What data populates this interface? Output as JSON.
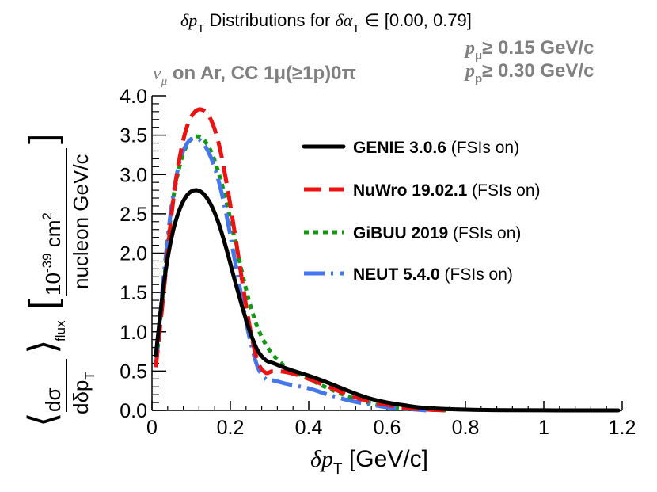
{
  "title": {
    "prefix": "δp",
    "prefix_sub": "T",
    "middle": " Distributions for ",
    "alpha": "δα",
    "alpha_sub": "T",
    "range": " ∈  [0.00, 0.79]"
  },
  "process": {
    "nu": "ν",
    "nu_sub": "μ",
    "text": " on Ar, CC 1μ(≥1p)0π"
  },
  "cuts": [
    {
      "var": "p",
      "sub": "μ",
      "text": "≥ 0.15 GeV/c"
    },
    {
      "var": "p",
      "sub": "p",
      "text": "≥ 0.30 GeV/c"
    }
  ],
  "yaxis": {
    "exp_base": "10",
    "exp": "-39",
    "numerator": " cm",
    "numerator_sup": "2",
    "denominator": "nucleon GeV/c",
    "deriv_num": "dσ",
    "deriv_den": "dδp",
    "deriv_sub": "T",
    "flux": "flux"
  },
  "xaxis": {
    "label": "δp",
    "label_sub": "T",
    "unit": " [GeV/c]"
  },
  "colors": {
    "genie": "#000000",
    "nuwro": "#ee1111",
    "gibuu": "#119911",
    "neut": "#4477ee",
    "grey_text": "#808080"
  },
  "chart_data": {
    "type": "line",
    "xlim": [
      0,
      1.2
    ],
    "ylim": [
      0,
      4.0
    ],
    "xticks": [
      0,
      0.2,
      0.4,
      0.6,
      0.8,
      1,
      1.2
    ],
    "xtick_labels": [
      "0",
      "0.2",
      "0.4",
      "0.6",
      "0.8",
      "1",
      "1.2"
    ],
    "yticks": [
      0,
      0.5,
      1,
      1.5,
      2,
      2.5,
      3,
      3.5,
      4
    ],
    "ytick_labels": [
      "0.0",
      "0.5",
      "1.0",
      "1.5",
      "2.0",
      "2.5",
      "3.0",
      "3.5",
      "4.0"
    ],
    "series": [
      {
        "key": "genie",
        "name_bold": "GENIE 3.0.6",
        "name_rest": " (FSIs on)",
        "style": "solid",
        "x": [
          0.01,
          0.03,
          0.05,
          0.07,
          0.09,
          0.11,
          0.13,
          0.15,
          0.17,
          0.19,
          0.21,
          0.23,
          0.25,
          0.27,
          0.29,
          0.31,
          0.35,
          0.4,
          0.45,
          0.5,
          0.55,
          0.6,
          0.65,
          0.7,
          0.8,
          0.9,
          1.0,
          1.1,
          1.19
        ],
        "y": [
          0.7,
          1.6,
          2.2,
          2.55,
          2.74,
          2.8,
          2.76,
          2.62,
          2.38,
          2.05,
          1.68,
          1.32,
          1.0,
          0.76,
          0.64,
          0.6,
          0.52,
          0.44,
          0.35,
          0.25,
          0.16,
          0.1,
          0.06,
          0.03,
          0.01,
          0.003,
          0.001,
          0.0,
          0.0
        ]
      },
      {
        "key": "nuwro",
        "name_bold": "NuWro 19.02.1",
        "name_rest": " (FSIs on)",
        "style": "dashed",
        "x": [
          0.01,
          0.03,
          0.05,
          0.07,
          0.09,
          0.11,
          0.13,
          0.15,
          0.17,
          0.19,
          0.21,
          0.23,
          0.25,
          0.27,
          0.29,
          0.31,
          0.35,
          0.4,
          0.45,
          0.5,
          0.55,
          0.6,
          0.65,
          0.7,
          0.75
        ],
        "y": [
          0.55,
          1.5,
          2.5,
          3.2,
          3.62,
          3.8,
          3.82,
          3.7,
          3.4,
          2.9,
          2.3,
          1.65,
          1.05,
          0.62,
          0.48,
          0.5,
          0.48,
          0.4,
          0.3,
          0.2,
          0.12,
          0.07,
          0.03,
          0.01,
          0.0
        ]
      },
      {
        "key": "gibuu",
        "name_bold": "GiBUU 2019",
        "name_rest": " (FSIs on)",
        "style": "dotted",
        "x": [
          0.01,
          0.03,
          0.05,
          0.07,
          0.09,
          0.11,
          0.13,
          0.15,
          0.17,
          0.19,
          0.21,
          0.23,
          0.25,
          0.27,
          0.29,
          0.31,
          0.33,
          0.35,
          0.4,
          0.45,
          0.5,
          0.55,
          0.6,
          0.65,
          0.7,
          0.75
        ],
        "y": [
          0.55,
          1.6,
          2.55,
          3.1,
          3.38,
          3.48,
          3.45,
          3.3,
          3.02,
          2.65,
          2.2,
          1.75,
          1.35,
          1.05,
          0.84,
          0.7,
          0.6,
          0.52,
          0.4,
          0.28,
          0.18,
          0.1,
          0.05,
          0.02,
          0.01,
          0.0
        ]
      },
      {
        "key": "neut",
        "name_bold": "NEUT 5.4.0",
        "name_rest": " (FSIs on)",
        "style": "dashdot",
        "x": [
          0.01,
          0.03,
          0.05,
          0.07,
          0.09,
          0.11,
          0.13,
          0.15,
          0.17,
          0.19,
          0.21,
          0.23,
          0.25,
          0.27,
          0.29,
          0.31,
          0.35,
          0.4,
          0.45,
          0.5,
          0.55,
          0.6,
          0.65,
          0.7
        ],
        "y": [
          0.55,
          1.7,
          2.6,
          3.15,
          3.4,
          3.46,
          3.4,
          3.22,
          2.92,
          2.48,
          1.95,
          1.4,
          0.9,
          0.55,
          0.4,
          0.38,
          0.33,
          0.28,
          0.2,
          0.13,
          0.08,
          0.04,
          0.02,
          0.0
        ]
      }
    ]
  }
}
